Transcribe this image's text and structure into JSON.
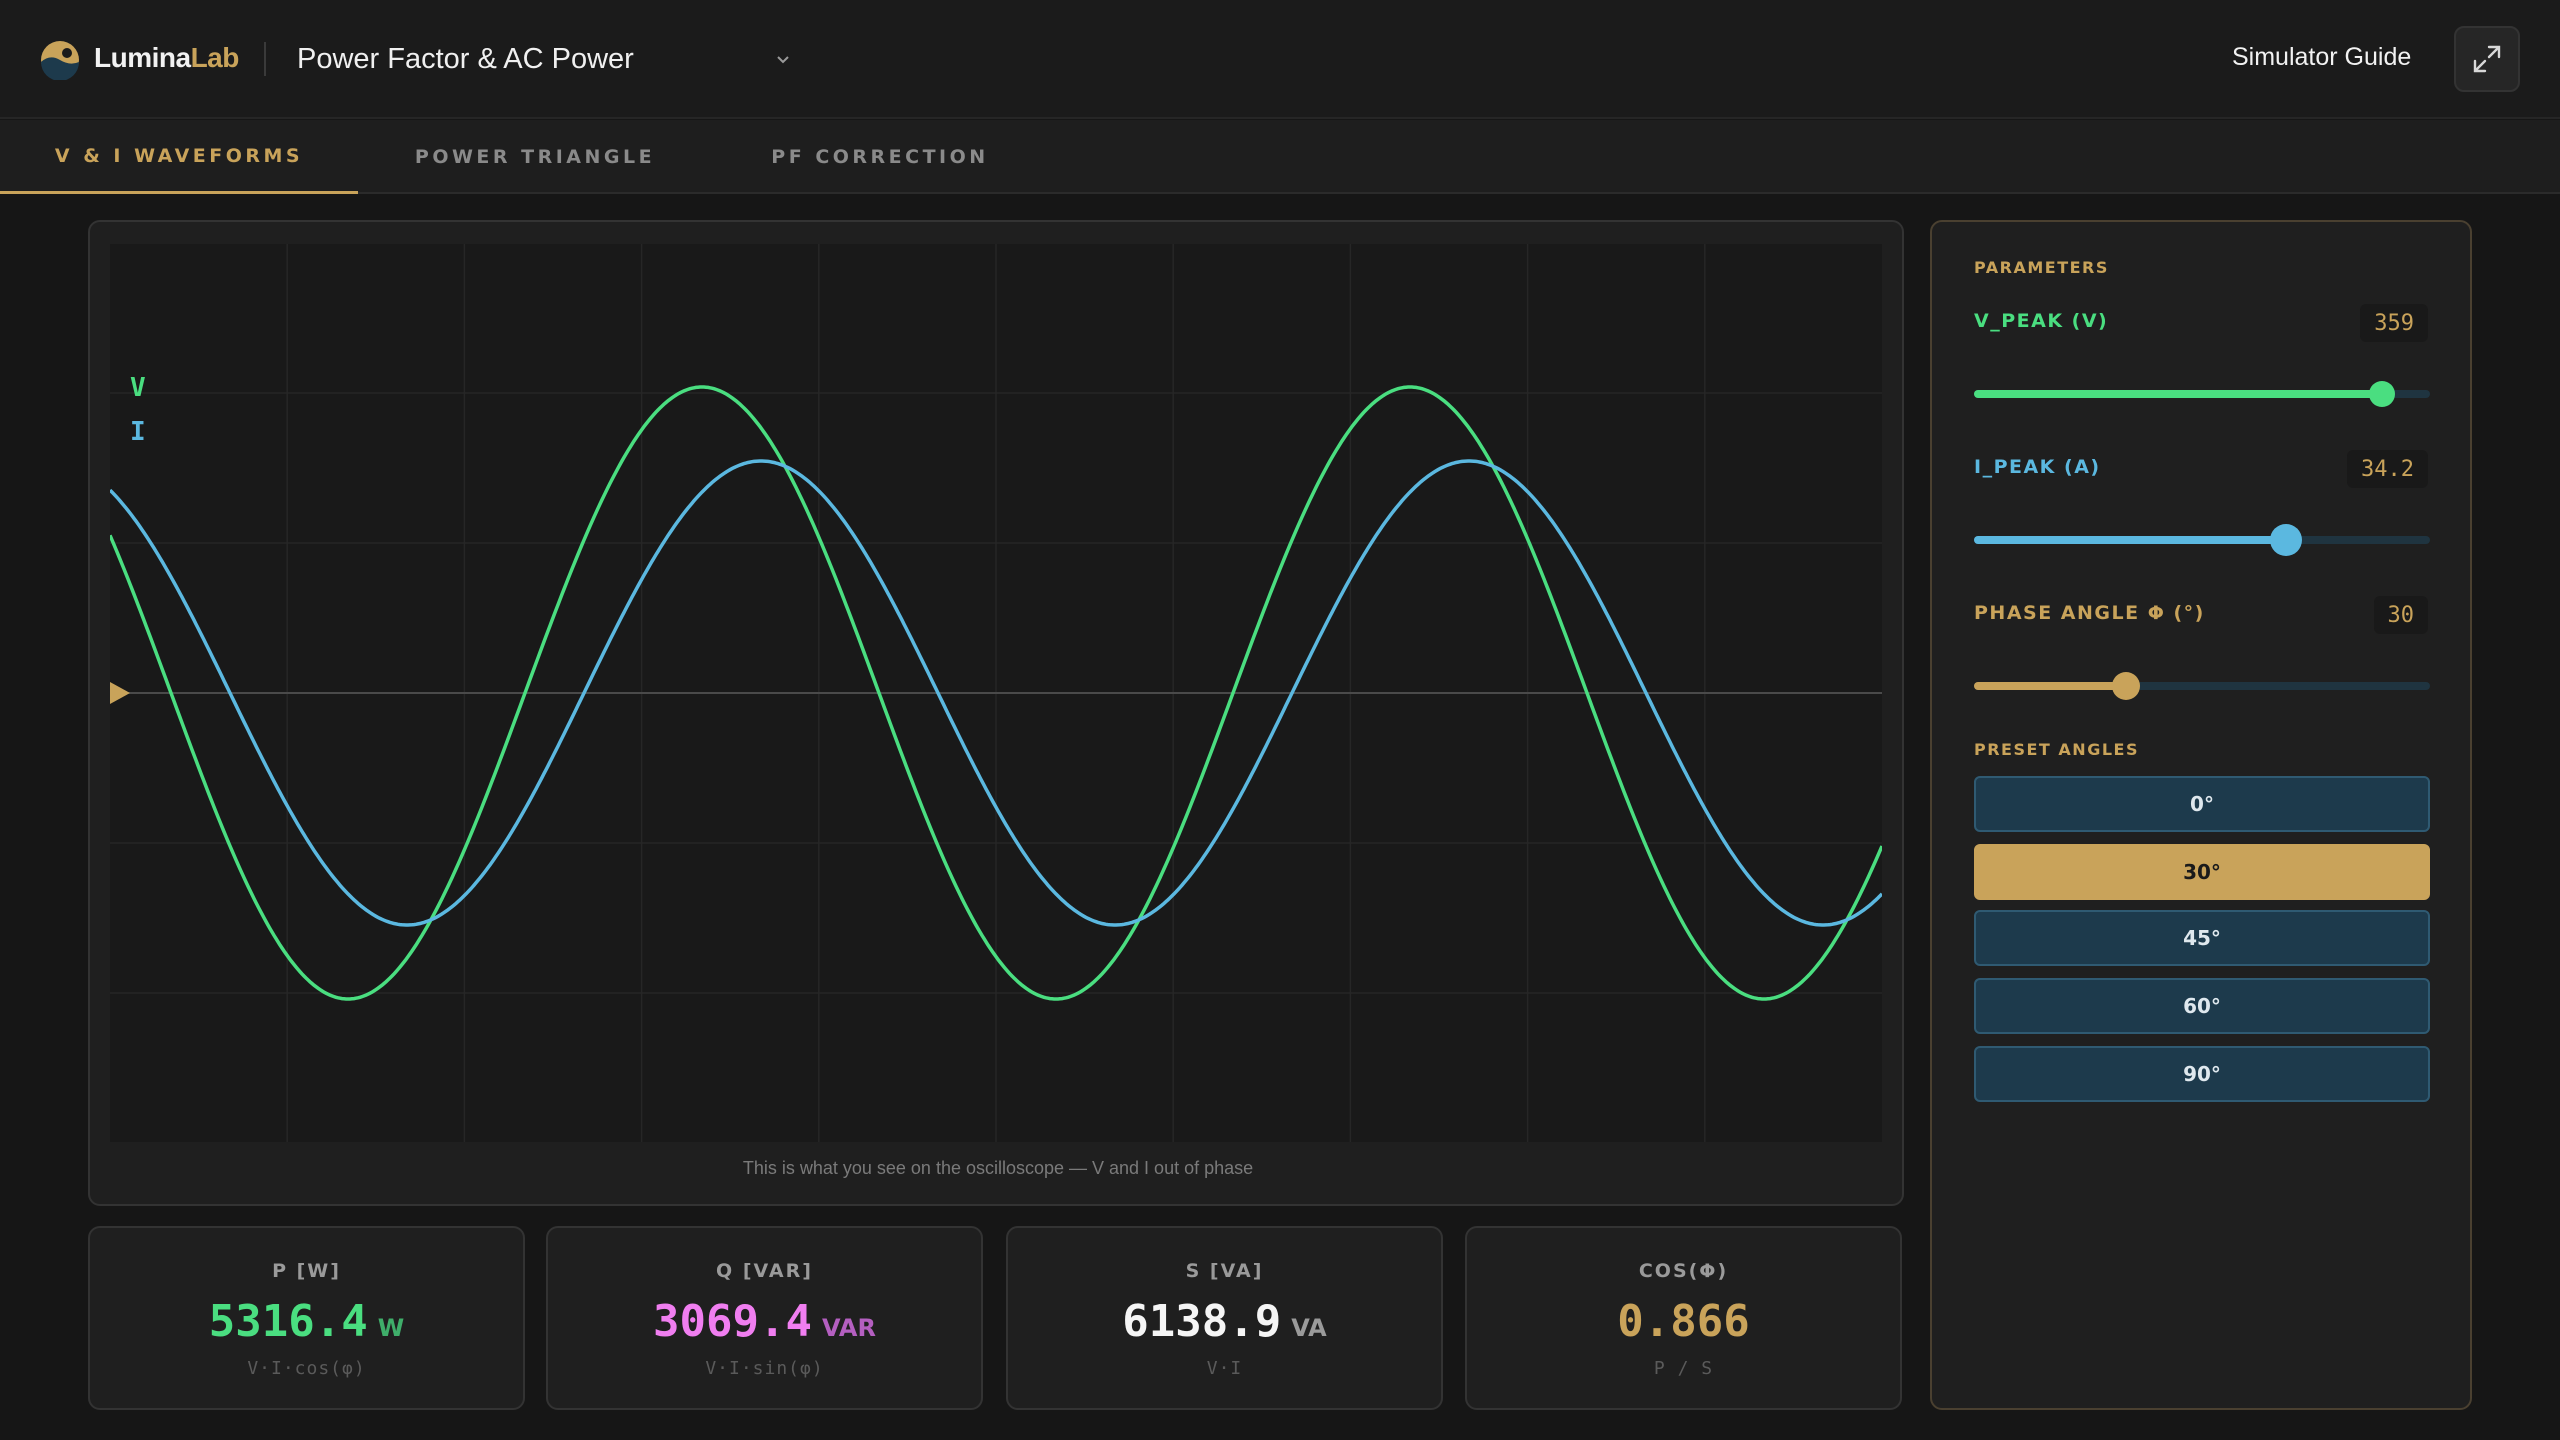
{
  "header": {
    "brand_primary": "Lumina",
    "brand_accent": "Lab",
    "title": "Power Factor & AC Power",
    "guide_label": "Simulator Guide"
  },
  "tabs": [
    {
      "label": "V & I WAVEFORMS",
      "active": true
    },
    {
      "label": "POWER TRIANGLE",
      "active": false
    },
    {
      "label": "PF CORRECTION",
      "active": false
    }
  ],
  "scope": {
    "legend_v": "V",
    "legend_i": "I",
    "caption": "This is what you see on the oscilloscope — V and I out of phase"
  },
  "stats": [
    {
      "label": "P [W]",
      "value": "5316.4",
      "unit": "W",
      "formula": "V·I·cos(φ)",
      "color": "#4ade80",
      "unit_color": "#3fae6a"
    },
    {
      "label": "Q [VAR]",
      "value": "3069.4",
      "unit": "VAR",
      "formula": "V·I·sin(φ)",
      "color": "#f07ef0",
      "unit_color": "#b45fc0"
    },
    {
      "label": "S [VA]",
      "value": "6138.9",
      "unit": "VA",
      "formula": "V·I",
      "color": "#f5f5f5",
      "unit_color": "#9a9a9a"
    },
    {
      "label": "COS(Φ)",
      "value": "0.866",
      "unit": "",
      "formula": "P / S",
      "color": "#c9a35a",
      "unit_color": "#c9a35a"
    }
  ],
  "params": {
    "heading": "PARAMETERS",
    "v_peak": {
      "label": "V_PEAK (V)",
      "value": "359",
      "fraction": 0.895,
      "color": "#4ade80"
    },
    "i_peak": {
      "label": "I_PEAK (A)",
      "value": "34.2",
      "fraction": 0.685,
      "color": "#5bb8e0"
    },
    "phase": {
      "label": "PHASE ANGLE Φ (°)",
      "value": "30",
      "fraction": 0.333,
      "color": "#c9a35a"
    }
  },
  "presets": {
    "heading": "PRESET ANGLES",
    "items": [
      {
        "label": "0°",
        "active": false
      },
      {
        "label": "30°",
        "active": true
      },
      {
        "label": "45°",
        "active": false
      },
      {
        "label": "60°",
        "active": false
      },
      {
        "label": "90°",
        "active": false
      }
    ]
  },
  "colors": {
    "accent": "#c9a35a",
    "voltage": "#4ade80",
    "current": "#5bb8e0"
  },
  "icons": {
    "logo": "lumina-logo-icon",
    "chevron": "chevron-down-icon",
    "expand": "expand-icon",
    "trigger": "trigger-marker-icon"
  }
}
